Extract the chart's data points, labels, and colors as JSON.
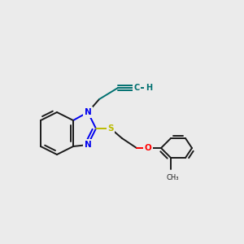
{
  "background_color": "#ebebeb",
  "bond_color": "#1a1a1a",
  "bond_width": 1.4,
  "atom_colors": {
    "N": "#0000ee",
    "S": "#bbbb00",
    "O": "#ff0000",
    "C_alkyne": "#007070",
    "C": "#1a1a1a"
  },
  "figsize": [
    3.0,
    3.0
  ],
  "dpi": 100
}
